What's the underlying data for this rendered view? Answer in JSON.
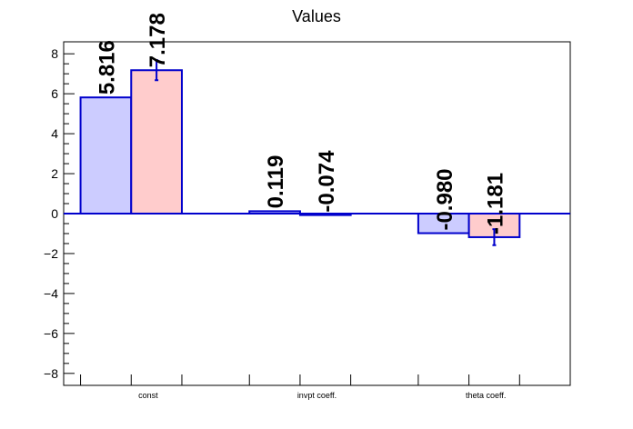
{
  "chart_data": {
    "type": "bar",
    "title": "Values",
    "categories": [
      "const",
      "invpt coeff.",
      "theta coeff."
    ],
    "series": [
      {
        "values": [
          5.816,
          0.119,
          -0.98
        ],
        "errors": [
          0,
          0,
          0
        ],
        "labels": [
          "5.816",
          "0.119",
          "-0.980"
        ],
        "fill": "#ccccff",
        "stroke": "#0000cc"
      },
      {
        "values": [
          7.178,
          -0.074,
          -1.181
        ],
        "errors": [
          0.5,
          0,
          0.4
        ],
        "labels": [
          "7.178",
          "-0.074",
          "-1.181"
        ],
        "fill": "#ffcccc",
        "stroke": "#0000cc"
      }
    ],
    "ylim": [
      -8.6,
      8.6
    ],
    "yticks": [
      -8,
      -6,
      -4,
      -2,
      0,
      2,
      4,
      6,
      8
    ],
    "ytick_labels": [
      "−8",
      "−6",
      "−4",
      "−2",
      "0",
      "2",
      "4",
      "6",
      "8"
    ],
    "xlabel": "",
    "ylabel": "",
    "grid": false,
    "legend": "none"
  }
}
